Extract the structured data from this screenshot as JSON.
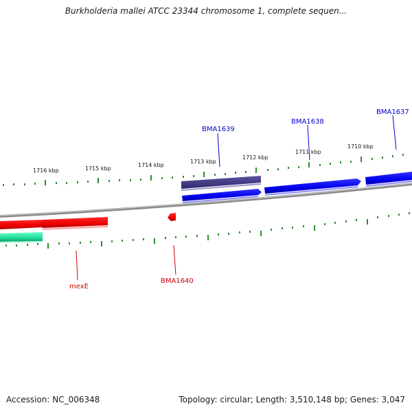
{
  "title": "Burkholderia mallei ATCC 23344 chromosome 1, complete sequen...",
  "footer": {
    "accession": "Accession: NC_006348",
    "topology": "Topology: circular; Length: 3,510,148 bp; Genes: 3,047"
  },
  "colors": {
    "forward_gene": "#0000ee",
    "forward_gene_dark": "#3d3580",
    "reverse_gene": "#ee0000",
    "other_feature": "#22dd99",
    "tick": "#2e8b2e",
    "backbone": "#8a8a8a"
  },
  "kbp_labels": [
    "1716 kbp",
    "1715 kbp",
    "1714 kbp",
    "1713 kbp",
    "1712 kbp",
    "1711 kbp",
    "1710 kbp"
  ],
  "genes": {
    "forward": [
      {
        "name": "BMA1639",
        "color": "#3d3580"
      },
      {
        "name": "BMA1638",
        "color": "#0000ee"
      },
      {
        "name": "BMA1637",
        "color": "#0000ee"
      }
    ],
    "reverse": [
      {
        "name": "mexE",
        "color": "#ee0000"
      },
      {
        "name": "BMA1640",
        "color": "#ee0000"
      }
    ]
  }
}
